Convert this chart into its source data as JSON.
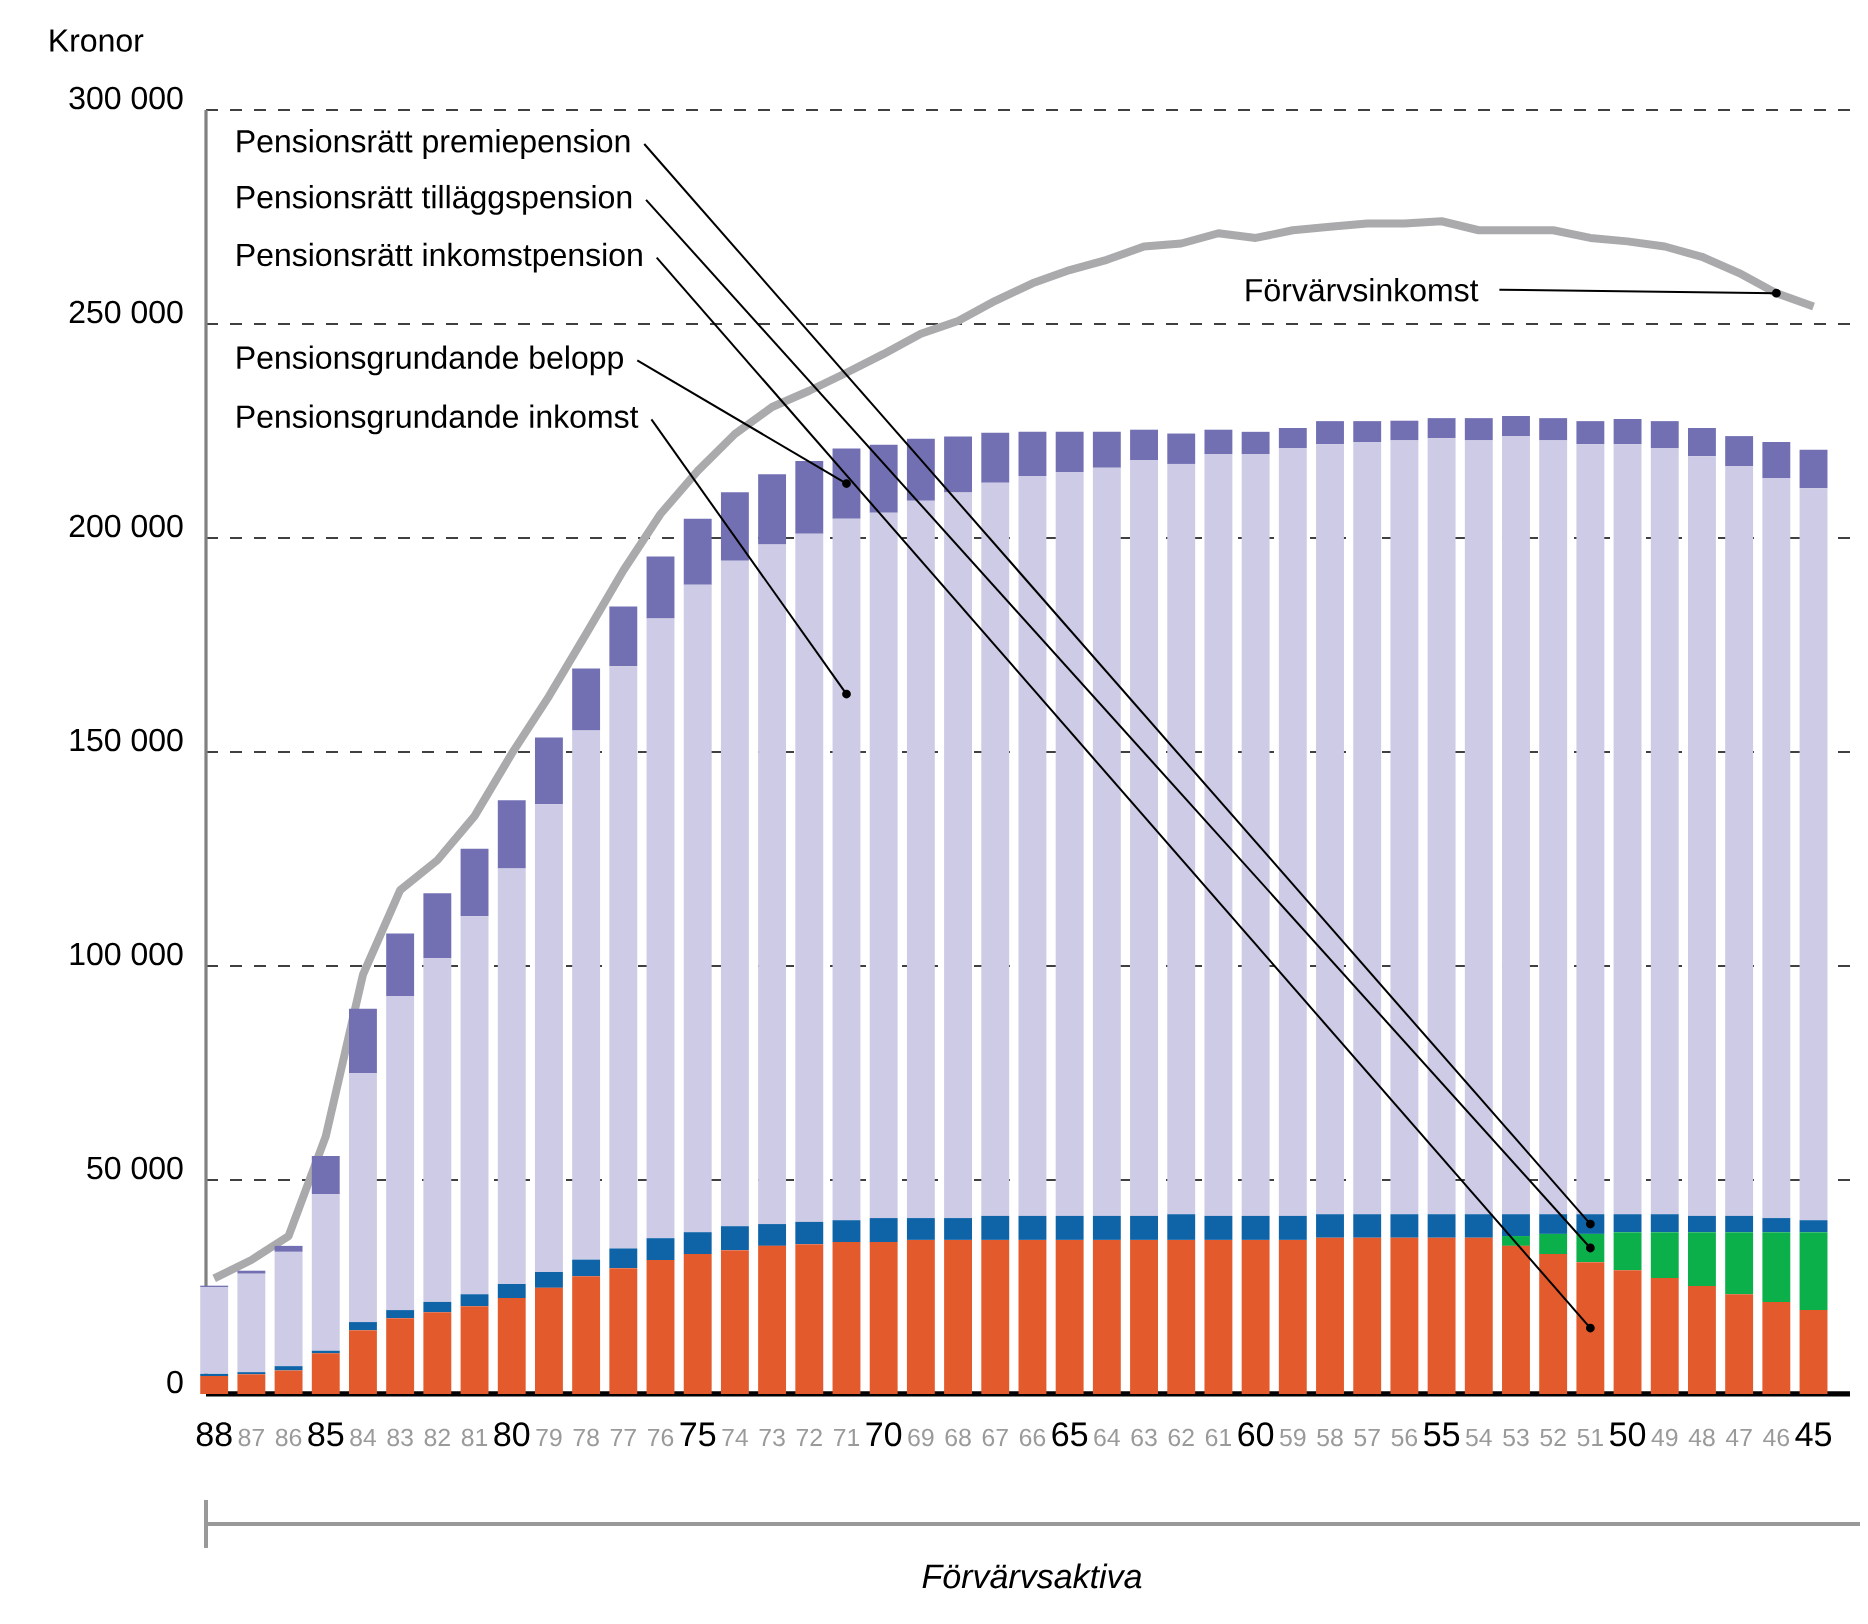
{
  "chart_data": {
    "type": "bar",
    "stacked": true,
    "ylabel": "Kronor",
    "categories": [
      "88",
      "87",
      "86",
      "85",
      "84",
      "83",
      "82",
      "81",
      "80",
      "79",
      "78",
      "77",
      "76",
      "75",
      "74",
      "73",
      "72",
      "71",
      "70",
      "69",
      "68",
      "67",
      "66",
      "65",
      "64",
      "63",
      "62",
      "61",
      "60",
      "59",
      "58",
      "57",
      "56",
      "55",
      "54",
      "53",
      "52",
      "51",
      "50",
      "49",
      "48",
      "47",
      "46",
      "45"
    ],
    "series": [
      {
        "name": "Pensionsrätt inkomstpension",
        "color": "#e35a2c",
        "values": [
          4200,
          4600,
          5500,
          9500,
          14900,
          17700,
          19100,
          20500,
          22400,
          24800,
          27500,
          29400,
          31300,
          32700,
          33600,
          34600,
          35000,
          35500,
          35500,
          36000,
          36000,
          36000,
          36000,
          36000,
          36000,
          36000,
          36000,
          36000,
          36000,
          36000,
          36500,
          36500,
          36500,
          36500,
          36500,
          34600,
          32700,
          30800,
          28900,
          27100,
          25200,
          23300,
          21500,
          19600
        ]
      },
      {
        "name": "Pensionsrätt tilläggspension",
        "color": "#0bb04b",
        "values": [
          0,
          0,
          0,
          0,
          0,
          0,
          0,
          0,
          0,
          0,
          0,
          0,
          0,
          0,
          0,
          0,
          0,
          0,
          0,
          0,
          0,
          0,
          0,
          0,
          0,
          0,
          0,
          0,
          0,
          0,
          0,
          0,
          0,
          0,
          0,
          2300,
          4700,
          6600,
          8900,
          10700,
          12600,
          14500,
          16300,
          18200
        ]
      },
      {
        "name": "Pensionsrätt premiepension",
        "color": "#0f64a8",
        "values": [
          500,
          500,
          1000,
          600,
          1900,
          1900,
          2400,
          2800,
          3300,
          3700,
          3900,
          4600,
          5100,
          5100,
          5600,
          5100,
          5200,
          5100,
          5600,
          5100,
          5100,
          5600,
          5600,
          5600,
          5600,
          5600,
          6000,
          5600,
          5600,
          5600,
          5500,
          5500,
          5500,
          5500,
          5500,
          5100,
          4600,
          4600,
          4200,
          4200,
          3800,
          3800,
          3300,
          2800
        ]
      },
      {
        "name": "Pensionsgrundande inkomst",
        "color": "#cdcbe5",
        "values": [
          20300,
          23000,
          26700,
          36600,
          58200,
          73400,
          80300,
          88300,
          97100,
          109300,
          123600,
          136000,
          144800,
          151300,
          155500,
          158800,
          160800,
          163900,
          164800,
          167600,
          169500,
          171300,
          172900,
          173800,
          174800,
          176600,
          175300,
          178000,
          178000,
          179400,
          179900,
          180400,
          180800,
          181300,
          180800,
          181800,
          180800,
          179900,
          179900,
          179000,
          177500,
          175200,
          172900,
          171000
        ]
      },
      {
        "name": "Pensionsgrundande belopp",
        "color": "#7270b3",
        "values": [
          300,
          700,
          1400,
          8900,
          15000,
          14600,
          15200,
          15800,
          15900,
          15600,
          14500,
          14000,
          14500,
          15400,
          16000,
          16400,
          17000,
          16400,
          15900,
          14500,
          13100,
          11700,
          10300,
          9400,
          8400,
          7100,
          7100,
          5700,
          5200,
          4700,
          5400,
          4900,
          4600,
          4700,
          5200,
          4700,
          5200,
          5400,
          5900,
          6300,
          6600,
          7000,
          8400,
          9000
        ]
      },
      {
        "name": "Förvärvsinkomst",
        "type": "line",
        "color": "#aaaaad",
        "values": [
          27000,
          31300,
          36900,
          60200,
          98000,
          117700,
          124700,
          135000,
          149600,
          163000,
          177600,
          192400,
          205600,
          215700,
          224300,
          230600,
          234400,
          238600,
          243000,
          247700,
          250700,
          255400,
          259500,
          262600,
          265000,
          268100,
          268800,
          271200,
          270100,
          271900,
          272700,
          273500,
          273500,
          274000,
          271900,
          271900,
          271900,
          270100,
          269300,
          268100,
          265700,
          261900,
          257200,
          254100
        ]
      }
    ],
    "ylim": [
      0,
      300000
    ],
    "yticks": [
      0,
      {
        "value": 50000,
        "label": "50 000"
      },
      {
        "value": 100000,
        "label": "100 000"
      },
      {
        "value": 150000,
        "label": "150 000"
      },
      {
        "value": 200000,
        "label": "200 000"
      },
      {
        "value": 250000,
        "label": "250 000"
      },
      {
        "value": 300000,
        "label": "300 000"
      }
    ],
    "grid": "y",
    "annotations": [
      "Förvärvsaktiva"
    ]
  }
}
